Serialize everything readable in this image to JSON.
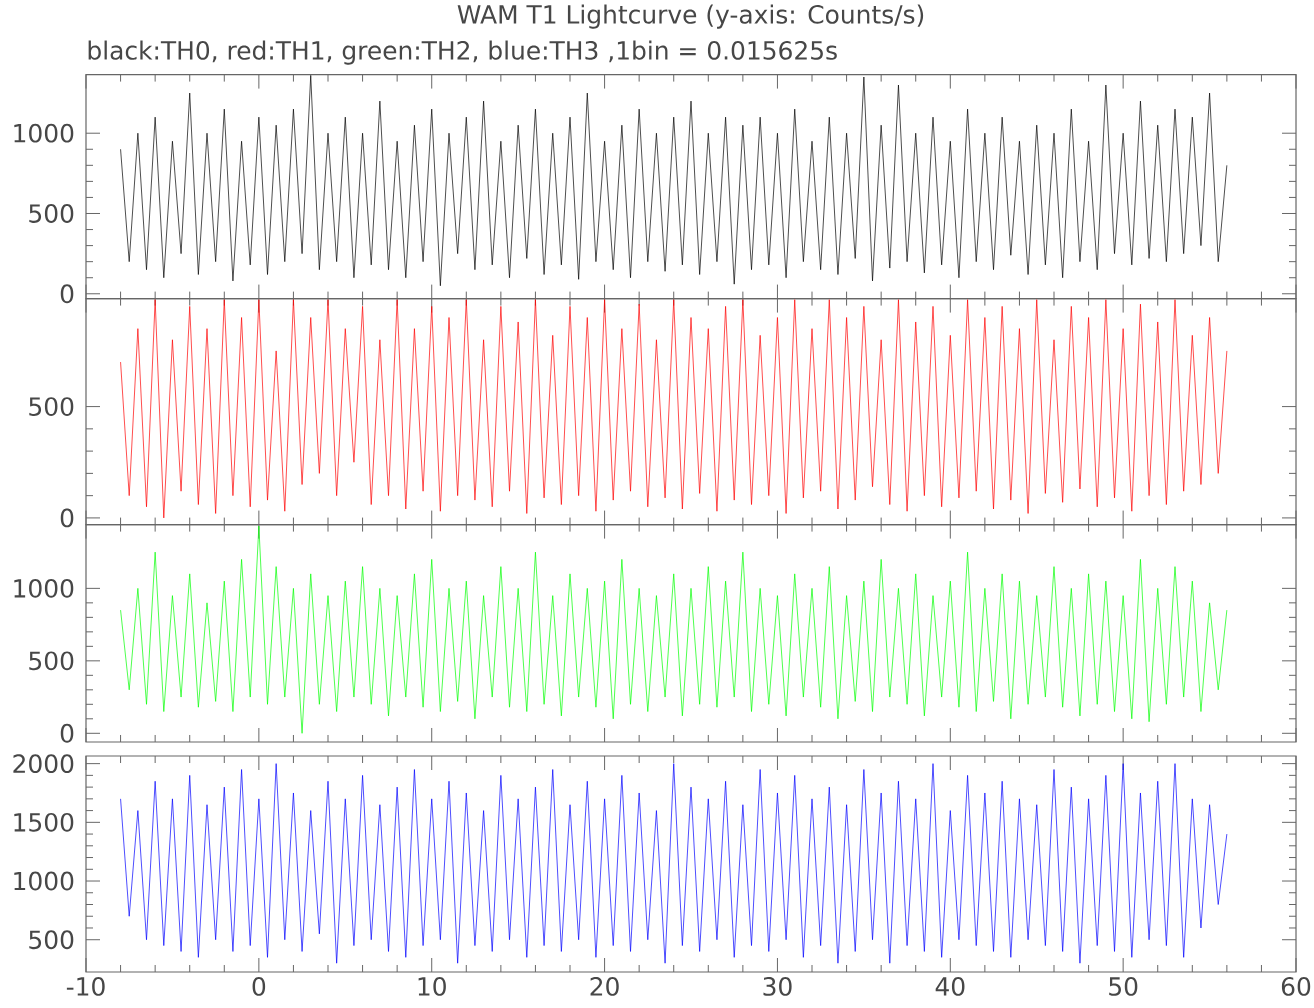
{
  "chart_data": [
    {
      "type": "line",
      "title": "WAM T1 Lightcurve (y-axis: Counts/s)",
      "subtitle": "black:TH0, red:TH1, green:TH2, blue:TH3 ,1bin = 0.015625s",
      "x": [
        -8,
        -7.5,
        -7,
        -6.5,
        -6,
        -5.5,
        -5,
        -4.5,
        -4,
        -3.5,
        -3,
        -2.5,
        -2,
        -1.5,
        -1,
        -0.5,
        0,
        0.5,
        1,
        1.5,
        2,
        2.5,
        3,
        3.5,
        4,
        4.5,
        5,
        5.5,
        6,
        6.5,
        7,
        7.5,
        8,
        8.5,
        9,
        9.5,
        10,
        10.5,
        11,
        11.5,
        12,
        12.5,
        13,
        13.5,
        14,
        14.5,
        15,
        15.5,
        16,
        16.5,
        17,
        17.5,
        18,
        18.5,
        19,
        19.5,
        20,
        20.5,
        21,
        21.5,
        22,
        22.5,
        23,
        23.5,
        24,
        24.5,
        25,
        25.5,
        26,
        26.5,
        27,
        27.5,
        28,
        28.5,
        29,
        29.5,
        30,
        30.5,
        31,
        31.5,
        32,
        32.5,
        33,
        33.5,
        34,
        34.5,
        35,
        35.5,
        36,
        36.5,
        37,
        37.5,
        38,
        38.5,
        39,
        39.5,
        40,
        40.5,
        41,
        41.5,
        42,
        42.5,
        43,
        43.5,
        44,
        44.5,
        45,
        45.5,
        46,
        46.5,
        47,
        47.5,
        48,
        48.5,
        49,
        49.5,
        50,
        50.5,
        51,
        51.5,
        52,
        52.5,
        53,
        53.5,
        54,
        54.5,
        55,
        55.5,
        56
      ],
      "values": [
        900,
        200,
        1000,
        150,
        1100,
        100,
        950,
        250,
        1250,
        120,
        1000,
        200,
        1150,
        80,
        950,
        180,
        1100,
        120,
        1050,
        200,
        1150,
        250,
        1360,
        150,
        1000,
        200,
        1100,
        100,
        1000,
        180,
        1200,
        150,
        950,
        100,
        1050,
        200,
        1150,
        50,
        1000,
        250,
        1100,
        150,
        1200,
        180,
        950,
        100,
        1050,
        220,
        1150,
        120,
        1000,
        180,
        1100,
        90,
        1250,
        200,
        950,
        150,
        1050,
        100,
        1150,
        200,
        1000,
        140,
        1100,
        180,
        1200,
        120,
        1000,
        200,
        1100,
        60,
        1050,
        150,
        1100,
        180,
        1000,
        100,
        1150,
        200,
        950,
        150,
        1100,
        120,
        1000,
        220,
        1350,
        80,
        1050,
        160,
        1300,
        200,
        1000,
        130,
        1100,
        180,
        950,
        100,
        1150,
        200,
        1000,
        150,
        1100,
        240,
        950,
        120,
        1050,
        180,
        1000,
        100,
        1150,
        200,
        950,
        150,
        1300,
        250,
        1000,
        180,
        1200,
        220,
        1050,
        200,
        1150,
        250,
        1100,
        300,
        1250,
        200,
        800
      ],
      "color": "#000000",
      "xlim": [
        -10,
        60
      ],
      "xticks": [
        -10,
        0,
        10,
        20,
        30,
        40,
        50,
        60
      ],
      "ylim": [
        -30,
        1365
      ],
      "yticks": [
        0,
        500,
        1000
      ],
      "tick_labels": "y"
    },
    {
      "type": "line",
      "x": [
        -8,
        -7.5,
        -7,
        -6.5,
        -6,
        -5.5,
        -5,
        -4.5,
        -4,
        -3.5,
        -3,
        -2.5,
        -2,
        -1.5,
        -1,
        -0.5,
        0,
        0.5,
        1,
        1.5,
        2,
        2.5,
        3,
        3.5,
        4,
        4.5,
        5,
        5.5,
        6,
        6.5,
        7,
        7.5,
        8,
        8.5,
        9,
        9.5,
        10,
        10.5,
        11,
        11.5,
        12,
        12.5,
        13,
        13.5,
        14,
        14.5,
        15,
        15.5,
        16,
        16.5,
        17,
        17.5,
        18,
        18.5,
        19,
        19.5,
        20,
        20.5,
        21,
        21.5,
        22,
        22.5,
        23,
        23.5,
        24,
        24.5,
        25,
        25.5,
        26,
        26.5,
        27,
        27.5,
        28,
        28.5,
        29,
        29.5,
        30,
        30.5,
        31,
        31.5,
        32,
        32.5,
        33,
        33.5,
        34,
        34.5,
        35,
        35.5,
        36,
        36.5,
        37,
        37.5,
        38,
        38.5,
        39,
        39.5,
        40,
        40.5,
        41,
        41.5,
        42,
        42.5,
        43,
        43.5,
        44,
        44.5,
        45,
        45.5,
        46,
        46.5,
        47,
        47.5,
        48,
        48.5,
        49,
        49.5,
        50,
        50.5,
        51,
        51.5,
        52,
        52.5,
        53,
        53.5,
        54,
        54.5,
        55,
        55.5,
        56
      ],
      "values": [
        700,
        100,
        850,
        50,
        980,
        0,
        800,
        120,
        950,
        60,
        850,
        20,
        980,
        100,
        900,
        50,
        980,
        80,
        750,
        30,
        980,
        150,
        900,
        200,
        980,
        100,
        850,
        250,
        950,
        60,
        800,
        100,
        980,
        40,
        850,
        120,
        950,
        30,
        900,
        100,
        980,
        80,
        800,
        50,
        950,
        120,
        880,
        20,
        980,
        90,
        820,
        60,
        950,
        100,
        900,
        30,
        980,
        80,
        850,
        120,
        960,
        50,
        800,
        90,
        980,
        40,
        900,
        110,
        850,
        30,
        950,
        80,
        980,
        60,
        820,
        100,
        900,
        20,
        980,
        90,
        850,
        120,
        980,
        40,
        900,
        80,
        950,
        140,
        800,
        60,
        980,
        30,
        880,
        100,
        950,
        50,
        820,
        90,
        980,
        120,
        900,
        40,
        950,
        80,
        850,
        20,
        980,
        110,
        800,
        70,
        950,
        130,
        900,
        50,
        980,
        90,
        850,
        30,
        960,
        100,
        880,
        60,
        980,
        120,
        820,
        150,
        900,
        200,
        750
      ],
      "color": "#ff0000",
      "xlim": [
        -10,
        60
      ],
      "xticks": [
        -10,
        0,
        10,
        20,
        30,
        40,
        50,
        60
      ],
      "ylim": [
        -30,
        985
      ],
      "yticks": [
        0,
        500
      ],
      "tick_labels": "y"
    },
    {
      "type": "line",
      "x": [
        -8,
        -7.5,
        -7,
        -6.5,
        -6,
        -5.5,
        -5,
        -4.5,
        -4,
        -3.5,
        -3,
        -2.5,
        -2,
        -1.5,
        -1,
        -0.5,
        0,
        0.5,
        1,
        1.5,
        2,
        2.5,
        3,
        3.5,
        4,
        4.5,
        5,
        5.5,
        6,
        6.5,
        7,
        7.5,
        8,
        8.5,
        9,
        9.5,
        10,
        10.5,
        11,
        11.5,
        12,
        12.5,
        13,
        13.5,
        14,
        14.5,
        15,
        15.5,
        16,
        16.5,
        17,
        17.5,
        18,
        18.5,
        19,
        19.5,
        20,
        20.5,
        21,
        21.5,
        22,
        22.5,
        23,
        23.5,
        24,
        24.5,
        25,
        25.5,
        26,
        26.5,
        27,
        27.5,
        28,
        28.5,
        29,
        29.5,
        30,
        30.5,
        31,
        31.5,
        32,
        32.5,
        33,
        33.5,
        34,
        34.5,
        35,
        35.5,
        36,
        36.5,
        37,
        37.5,
        38,
        38.5,
        39,
        39.5,
        40,
        40.5,
        41,
        41.5,
        42,
        42.5,
        43,
        43.5,
        44,
        44.5,
        45,
        45.5,
        46,
        46.5,
        47,
        47.5,
        48,
        48.5,
        49,
        49.5,
        50,
        50.5,
        51,
        51.5,
        52,
        52.5,
        53,
        53.5,
        54,
        54.5,
        55,
        55.5,
        56
      ],
      "values": [
        850,
        300,
        1000,
        200,
        1250,
        150,
        950,
        250,
        1100,
        180,
        900,
        220,
        1050,
        150,
        1200,
        250,
        1430,
        200,
        1150,
        250,
        1000,
        0,
        1100,
        200,
        950,
        150,
        1050,
        250,
        1150,
        200,
        1000,
        120,
        950,
        250,
        1100,
        180,
        1200,
        150,
        1000,
        220,
        1050,
        100,
        950,
        250,
        1150,
        180,
        1000,
        150,
        1250,
        200,
        950,
        120,
        1100,
        250,
        1000,
        180,
        1050,
        100,
        1200,
        200,
        1000,
        150,
        950,
        250,
        1100,
        120,
        1000,
        200,
        1150,
        180,
        1050,
        250,
        1250,
        150,
        1000,
        200,
        950,
        120,
        1100,
        250,
        1000,
        180,
        1150,
        100,
        950,
        220,
        1050,
        150,
        1200,
        250,
        1000,
        200,
        1100,
        120,
        950,
        250,
        1050,
        180,
        1250,
        150,
        1000,
        220,
        1100,
        100,
        1050,
        200,
        950,
        250,
        1150,
        180,
        1000,
        120,
        1100,
        200,
        1050,
        150,
        950,
        100,
        1200,
        80,
        1000,
        200,
        1150,
        250,
        1050,
        150,
        900,
        300,
        850
      ],
      "color": "#00ff00",
      "xlim": [
        -10,
        60
      ],
      "xticks": [
        -10,
        0,
        10,
        20,
        30,
        40,
        50,
        60
      ],
      "ylim": [
        -60,
        1440
      ],
      "yticks": [
        0,
        500,
        1000
      ],
      "tick_labels": "y"
    },
    {
      "type": "line",
      "x": [
        -8,
        -7.5,
        -7,
        -6.5,
        -6,
        -5.5,
        -5,
        -4.5,
        -4,
        -3.5,
        -3,
        -2.5,
        -2,
        -1.5,
        -1,
        -0.5,
        0,
        0.5,
        1,
        1.5,
        2,
        2.5,
        3,
        3.5,
        4,
        4.5,
        5,
        5.5,
        6,
        6.5,
        7,
        7.5,
        8,
        8.5,
        9,
        9.5,
        10,
        10.5,
        11,
        11.5,
        12,
        12.5,
        13,
        13.5,
        14,
        14.5,
        15,
        15.5,
        16,
        16.5,
        17,
        17.5,
        18,
        18.5,
        19,
        19.5,
        20,
        20.5,
        21,
        21.5,
        22,
        22.5,
        23,
        23.5,
        24,
        24.5,
        25,
        25.5,
        26,
        26.5,
        27,
        27.5,
        28,
        28.5,
        29,
        29.5,
        30,
        30.5,
        31,
        31.5,
        32,
        32.5,
        33,
        33.5,
        34,
        34.5,
        35,
        35.5,
        36,
        36.5,
        37,
        37.5,
        38,
        38.5,
        39,
        39.5,
        40,
        40.5,
        41,
        41.5,
        42,
        42.5,
        43,
        43.5,
        44,
        44.5,
        45,
        45.5,
        46,
        46.5,
        47,
        47.5,
        48,
        48.5,
        49,
        49.5,
        50,
        50.5,
        51,
        51.5,
        52,
        52.5,
        53,
        53.5,
        54,
        54.5,
        55,
        55.5,
        56
      ],
      "values": [
        1700,
        700,
        1600,
        500,
        1850,
        450,
        1700,
        400,
        1900,
        350,
        1650,
        500,
        1800,
        400,
        1950,
        450,
        1700,
        350,
        2000,
        500,
        1750,
        400,
        1600,
        550,
        1850,
        300,
        1700,
        450,
        1900,
        500,
        1650,
        400,
        1800,
        350,
        1950,
        450,
        1700,
        500,
        1850,
        300,
        1750,
        450,
        1600,
        400,
        1900,
        500,
        1700,
        350,
        1800,
        450,
        1950,
        400,
        1650,
        500,
        1850,
        350,
        1700,
        450,
        1900,
        400,
        1750,
        500,
        1600,
        300,
        2000,
        450,
        1800,
        400,
        1700,
        500,
        1850,
        350,
        1650,
        450,
        1950,
        400,
        1750,
        500,
        1900,
        350,
        1700,
        450,
        1800,
        300,
        1650,
        400,
        1950,
        500,
        1750,
        300,
        1850,
        450,
        1700,
        400,
        2000,
        350,
        1600,
        500,
        1900,
        450,
        1750,
        400,
        1850,
        350,
        1700,
        500,
        1650,
        450,
        1950,
        400,
        1800,
        300,
        1700,
        450,
        1900,
        400,
        2000,
        350,
        1750,
        500,
        1850,
        450,
        2000,
        350,
        1700,
        600,
        1650,
        800,
        1400
      ],
      "color": "#0000ff",
      "xlim": [
        -10,
        60
      ],
      "xticks": [
        -10,
        0,
        10,
        20,
        30,
        40,
        50,
        60
      ],
      "ylim": [
        225,
        2065
      ],
      "yticks": [
        500,
        1000,
        1500,
        2000
      ]
    }
  ]
}
